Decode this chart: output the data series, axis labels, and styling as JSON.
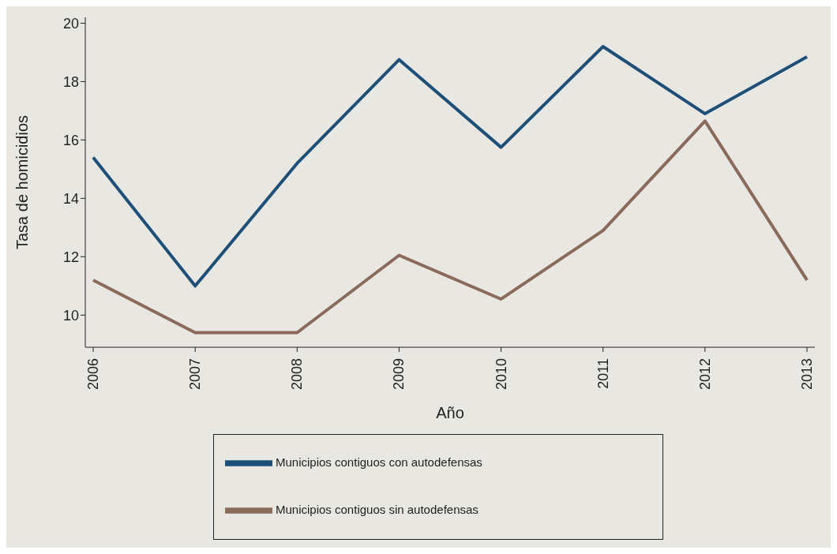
{
  "chart_data": {
    "type": "line",
    "xlabel": "Año",
    "ylabel": "Tasa de homicidios",
    "categories": [
      "2006",
      "2007",
      "2008",
      "2009",
      "2010",
      "2011",
      "2012",
      "2013"
    ],
    "series": [
      {
        "name": "Municipios contiguos con autodefensas",
        "color": "#1d4f78",
        "values": [
          15.4,
          11.0,
          15.2,
          18.75,
          15.75,
          19.2,
          16.9,
          18.85
        ]
      },
      {
        "name": "Municipios contiguos sin autodefensas",
        "color": "#8a6a5a",
        "values": [
          11.2,
          9.4,
          9.4,
          12.05,
          10.55,
          12.9,
          16.65,
          11.2
        ]
      }
    ],
    "ylim": [
      8.9,
      20.2
    ],
    "yticks": [
      10,
      12,
      14,
      16,
      18,
      20
    ],
    "grid": false,
    "legend": "bottom",
    "marker": "none",
    "line_style": "solid"
  }
}
